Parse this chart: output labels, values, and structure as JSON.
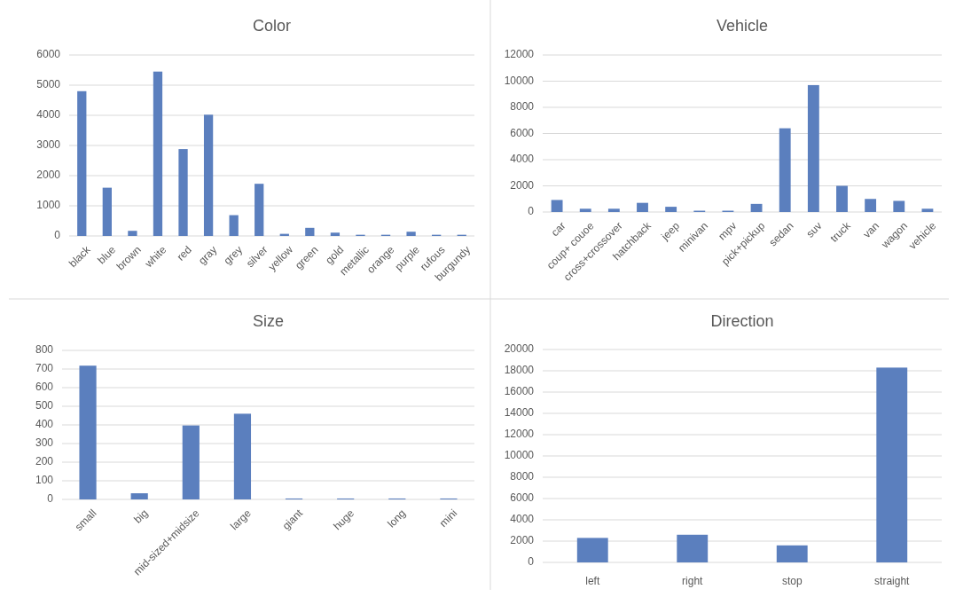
{
  "chart_data": [
    {
      "type": "bar",
      "title": "Color",
      "categories": [
        "black",
        "blue",
        "brown",
        "white",
        "red",
        "gray",
        "grey",
        "silver",
        "yellow",
        "green",
        "gold",
        "metallic",
        "orange",
        "purple",
        "rufous",
        "burgundy"
      ],
      "values": [
        4800,
        1600,
        170,
        5450,
        2880,
        4020,
        690,
        1730,
        70,
        270,
        110,
        40,
        40,
        140,
        40,
        40
      ],
      "color": "#5b7fbe",
      "ylim": [
        0,
        6000
      ],
      "yticks": [
        0,
        1000,
        2000,
        3000,
        4000,
        5000,
        6000
      ],
      "grid": "y"
    },
    {
      "type": "bar",
      "title": "Vehicle",
      "categories": [
        "car",
        "coup+ couoe",
        "cross+crossover",
        "hatchback",
        "jeep",
        "minivan",
        "mpv",
        "pick+pickup",
        "sedan",
        "suv",
        "truck",
        "van",
        "wagon",
        "vehicle"
      ],
      "values": [
        920,
        250,
        250,
        700,
        400,
        100,
        100,
        620,
        6400,
        9700,
        2000,
        1000,
        850,
        250
      ],
      "color": "#5b7fbe",
      "ylim": [
        0,
        12000
      ],
      "yticks": [
        0,
        2000,
        4000,
        6000,
        8000,
        10000,
        12000
      ],
      "grid": "y"
    },
    {
      "type": "bar",
      "title": "Size",
      "categories": [
        "small",
        "big",
        "mid-sized+midsize",
        "large",
        "giant",
        "huge",
        "long",
        "mini"
      ],
      "values": [
        718,
        33,
        397,
        460,
        5,
        5,
        5,
        5
      ],
      "color": "#5b7fbe",
      "ylim": [
        0,
        800
      ],
      "yticks": [
        0,
        100,
        200,
        300,
        400,
        500,
        600,
        700,
        800
      ],
      "grid": "y"
    },
    {
      "type": "bar",
      "title": "Direction",
      "categories": [
        "left",
        "right",
        "stop",
        "straight"
      ],
      "values": [
        2300,
        2600,
        1600,
        18300
      ],
      "color": "#5b7fbe",
      "ylim": [
        0,
        20000
      ],
      "yticks": [
        0,
        2000,
        4000,
        6000,
        8000,
        10000,
        12000,
        14000,
        16000,
        18000,
        20000
      ],
      "grid": "y"
    }
  ]
}
